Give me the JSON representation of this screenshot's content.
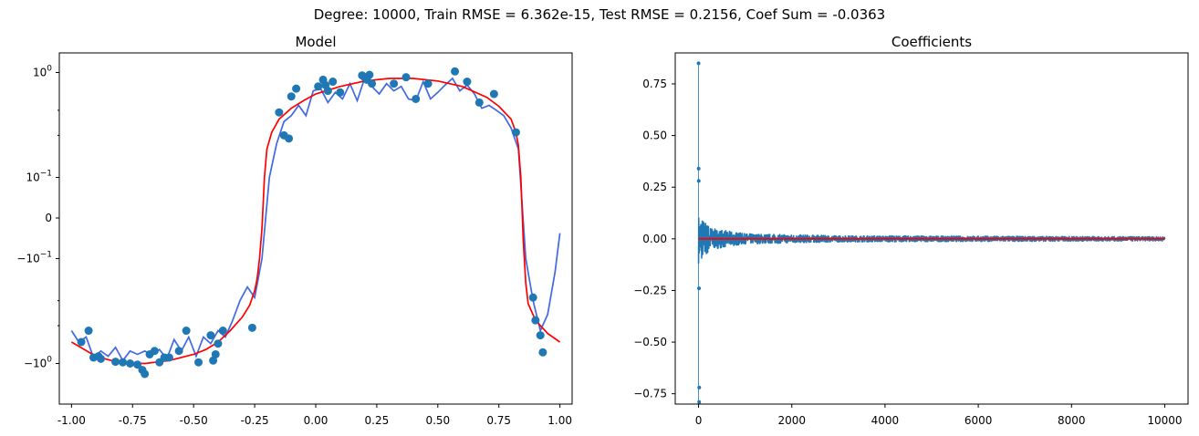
{
  "suptitle": "Degree: 10000, Train RMSE = 6.362e-15, Test RMSE = 0.2156, Coef Sum = -0.0363",
  "colors": {
    "fit": "#4169e1",
    "truth": "#ff0000",
    "points": "#1f77b4",
    "coef": "#1f77b4",
    "zero": "#ff0000"
  },
  "chart_data": [
    {
      "type": "line",
      "title": "Model",
      "xlim": [
        -1.05,
        1.05
      ],
      "yscale": "symlog",
      "xticks": [
        "-1.00",
        "-0.75",
        "-0.50",
        "-0.25",
        "0.00",
        "0.25",
        "0.50",
        "0.75",
        "1.00"
      ],
      "yticks": [
        "10^0",
        "10^-1",
        "0",
        "-10^-1",
        "-10^0"
      ],
      "series": [
        {
          "role": "fit",
          "x": [
            -1.0,
            -0.97,
            -0.94,
            -0.91,
            -0.88,
            -0.85,
            -0.82,
            -0.79,
            -0.76,
            -0.73,
            -0.7,
            -0.67,
            -0.64,
            -0.61,
            -0.58,
            -0.55,
            -0.52,
            -0.49,
            -0.46,
            -0.43,
            -0.4,
            -0.37,
            -0.34,
            -0.31,
            -0.28,
            -0.25,
            -0.22,
            -0.19,
            -0.16,
            -0.13,
            -0.1,
            -0.07,
            -0.04,
            -0.01,
            0.02,
            0.05,
            0.08,
            0.11,
            0.14,
            0.17,
            0.2,
            0.23,
            0.26,
            0.29,
            0.32,
            0.35,
            0.38,
            0.41,
            0.44,
            0.47,
            0.5,
            0.53,
            0.56,
            0.59,
            0.62,
            0.65,
            0.68,
            0.71,
            0.74,
            0.77,
            0.8,
            0.83,
            0.86,
            0.89,
            0.92,
            0.95,
            0.98,
            1.0
          ],
          "y": [
            -0.55,
            -0.68,
            -0.62,
            -0.9,
            -0.8,
            -0.88,
            -0.75,
            -0.95,
            -0.8,
            -0.85,
            -0.8,
            -0.86,
            -0.78,
            -0.92,
            -0.65,
            -0.8,
            -0.62,
            -0.88,
            -0.62,
            -0.7,
            -0.55,
            -0.62,
            -0.45,
            -0.3,
            -0.22,
            -0.28,
            -0.1,
            0.1,
            0.25,
            0.4,
            0.45,
            0.55,
            0.45,
            0.72,
            0.75,
            0.58,
            0.7,
            0.62,
            0.82,
            0.6,
            0.9,
            0.78,
            0.68,
            0.82,
            0.72,
            0.78,
            0.62,
            0.6,
            0.85,
            0.62,
            0.7,
            0.8,
            0.9,
            0.72,
            0.8,
            0.68,
            0.52,
            0.55,
            0.5,
            0.45,
            0.35,
            0.22,
            -0.1,
            -0.3,
            -0.55,
            -0.4,
            -0.15,
            -0.03
          ]
        },
        {
          "role": "truth",
          "x": [
            -1.0,
            -0.9,
            -0.8,
            -0.7,
            -0.6,
            -0.5,
            -0.45,
            -0.4,
            -0.35,
            -0.3,
            -0.27,
            -0.25,
            -0.24,
            -0.23,
            -0.22,
            -0.21,
            -0.2,
            -0.18,
            -0.15,
            -0.1,
            -0.05,
            0.0,
            0.1,
            0.2,
            0.3,
            0.4,
            0.5,
            0.6,
            0.7,
            0.75,
            0.8,
            0.82,
            0.83,
            0.84,
            0.85,
            0.86,
            0.87,
            0.9,
            0.95,
            1.0
          ],
          "y": [
            -0.68,
            -0.88,
            -0.99,
            -1.0,
            -0.95,
            -0.85,
            -0.78,
            -0.68,
            -0.55,
            -0.42,
            -0.33,
            -0.24,
            -0.18,
            -0.1,
            -0.02,
            0.1,
            0.22,
            0.32,
            0.42,
            0.52,
            0.6,
            0.68,
            0.78,
            0.86,
            0.9,
            0.9,
            0.86,
            0.78,
            0.64,
            0.54,
            0.42,
            0.32,
            0.24,
            0.1,
            -0.05,
            -0.2,
            -0.32,
            -0.45,
            -0.58,
            -0.68
          ]
        },
        {
          "role": "points",
          "x": [
            -0.96,
            -0.93,
            -0.91,
            -0.89,
            -0.88,
            -0.82,
            -0.79,
            -0.76,
            -0.73,
            -0.71,
            -0.7,
            -0.68,
            -0.66,
            -0.64,
            -0.62,
            -0.6,
            -0.56,
            -0.53,
            -0.48,
            -0.43,
            -0.42,
            -0.41,
            -0.4,
            -0.38,
            -0.26,
            -0.15,
            -0.13,
            -0.11,
            -0.1,
            -0.08,
            0.01,
            0.03,
            0.04,
            0.05,
            0.07,
            0.1,
            0.19,
            0.2,
            0.21,
            0.22,
            0.23,
            0.32,
            0.37,
            0.41,
            0.46,
            0.57,
            0.62,
            0.67,
            0.73,
            0.82,
            0.89,
            0.9,
            0.92,
            0.93
          ],
          "y": [
            -0.68,
            -0.55,
            -0.9,
            -0.88,
            -0.92,
            -0.97,
            -0.98,
            -1.0,
            -1.02,
            -1.12,
            -1.2,
            -0.85,
            -0.8,
            -0.98,
            -0.9,
            -0.9,
            -0.8,
            -0.55,
            -0.98,
            -0.6,
            -0.95,
            -0.85,
            -0.7,
            -0.55,
            -0.52,
            0.48,
            0.3,
            0.28,
            0.65,
            0.75,
            0.78,
            0.88,
            0.8,
            0.72,
            0.85,
            0.7,
            0.95,
            0.92,
            0.88,
            0.96,
            0.82,
            0.82,
            0.92,
            0.62,
            0.82,
            1.02,
            0.85,
            0.58,
            0.68,
            0.32,
            -0.28,
            -0.45,
            -0.6,
            -0.82
          ]
        }
      ]
    },
    {
      "type": "scatter",
      "title": "Coefficients",
      "xlim": [
        -500,
        10500
      ],
      "ylim": [
        -0.8,
        0.9
      ],
      "xticks": [
        0,
        2000,
        4000,
        6000,
        8000,
        10000
      ],
      "yticks": [
        "0.75",
        "0.50",
        "0.25",
        "0.00",
        "-0.25",
        "-0.50",
        "-0.75"
      ],
      "n_coefficients": 10001,
      "notable_values": [
        {
          "x": 0,
          "y": 0.85
        },
        {
          "x": 2,
          "y": 0.34
        },
        {
          "x": 4,
          "y": 0.28
        },
        {
          "x": 10,
          "y": -0.24
        },
        {
          "x": 3,
          "y": -0.72
        },
        {
          "x": 1,
          "y": -0.79
        }
      ],
      "envelope_amplitude": [
        {
          "x": 0,
          "y": 0.12
        },
        {
          "x": 300,
          "y": 0.05
        },
        {
          "x": 1000,
          "y": 0.025
        },
        {
          "x": 3000,
          "y": 0.015
        },
        {
          "x": 10000,
          "y": 0.01
        }
      ],
      "zero_line": 0
    }
  ]
}
